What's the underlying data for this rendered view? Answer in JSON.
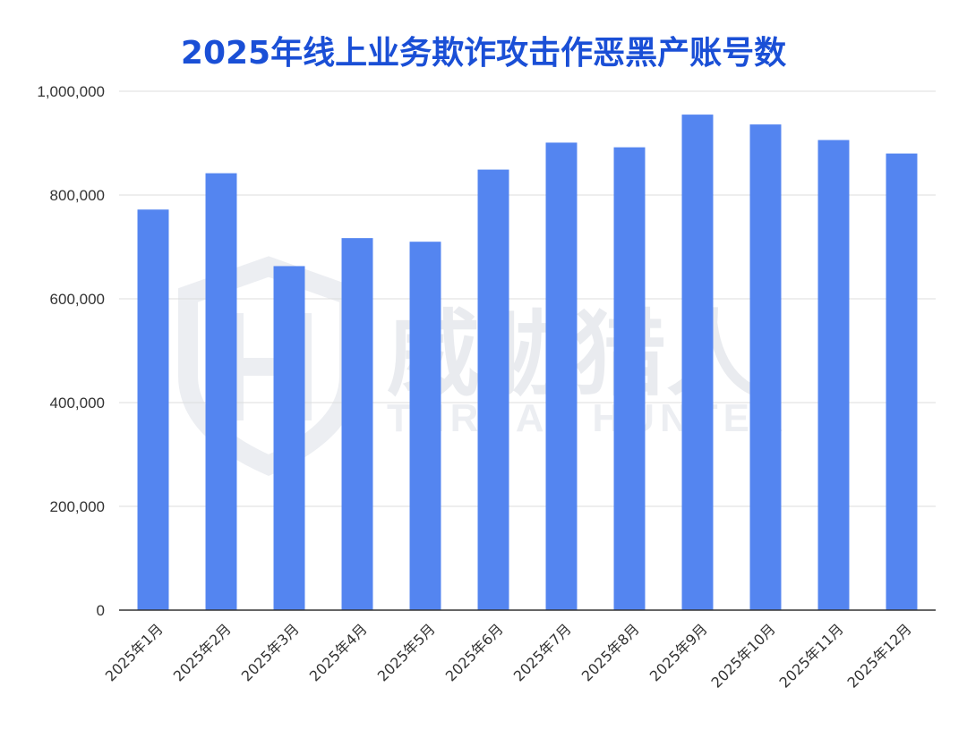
{
  "chart_data": {
    "type": "bar",
    "title": "2025年线上业务欺诈攻击作恶黑产账号数",
    "categories": [
      "2025年1月",
      "2025年2月",
      "2025年3月",
      "2025年4月",
      "2025年5月",
      "2025年6月",
      "2025年7月",
      "2025年8月",
      "2025年9月",
      "2025年10月",
      "2025年11月",
      "2025年12月"
    ],
    "values": [
      772000,
      842000,
      663000,
      717000,
      710000,
      849000,
      901000,
      892000,
      955000,
      936000,
      906000,
      880000
    ],
    "ylim": [
      0,
      1000000
    ],
    "yticks": [
      0,
      200000,
      400000,
      600000,
      800000,
      1000000
    ],
    "ytick_labels": [
      "0",
      "200,000",
      "400,000",
      "600,000",
      "800,000",
      "1,000,000"
    ],
    "grid": true,
    "bar_color": "#5485f0",
    "title_color": "#1a4fd6"
  },
  "watermark": {
    "cn": "威胁猎人",
    "en": "THREAT HUNTER"
  }
}
